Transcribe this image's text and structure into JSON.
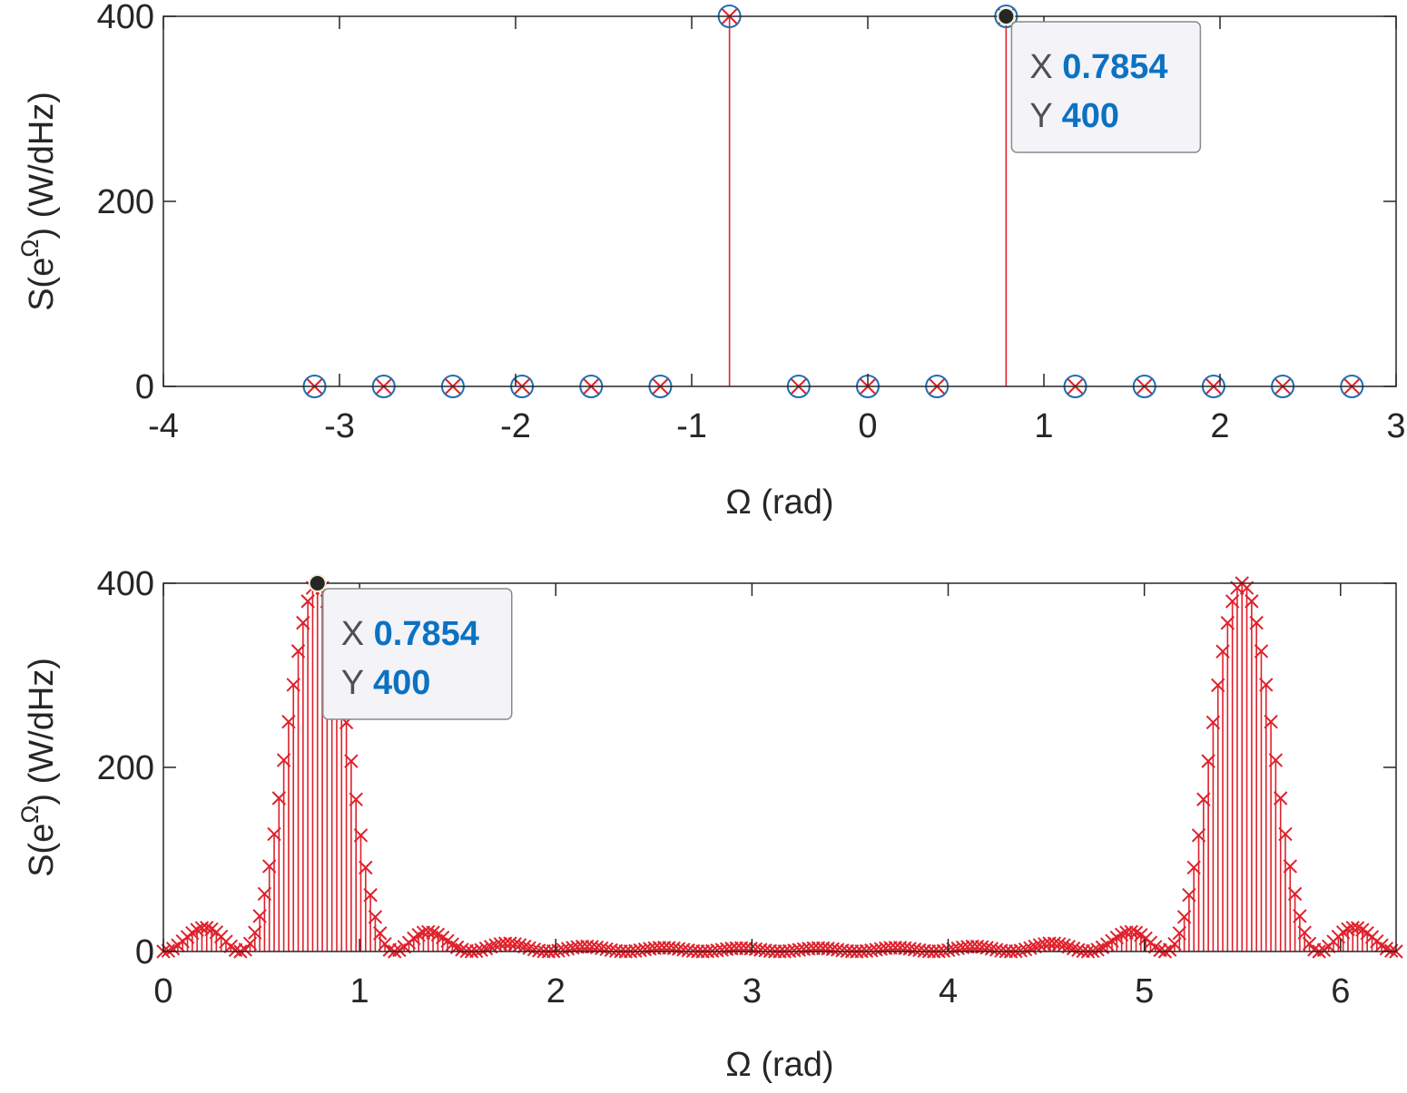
{
  "chart_data": [
    {
      "type": "stem",
      "xlabel": "Ω (rad)",
      "ylabel": "S(e^Ω)  (W/dHz)",
      "xlim": [
        -4,
        3
      ],
      "ylim": [
        0,
        400
      ],
      "xticks": [
        "-4",
        "-3",
        "-2",
        "-1",
        "0",
        "1",
        "2",
        "3"
      ],
      "yticks": [
        "0",
        "200",
        "400"
      ],
      "grid": false,
      "series": [
        {
          "marker": "x",
          "x": [
            -3.1416,
            -2.7489,
            -2.3562,
            -1.9635,
            -1.5708,
            -1.1781,
            -0.7854,
            -0.3927,
            0,
            0.3927,
            0.7854,
            1.1781,
            1.5708,
            1.9635,
            2.3562,
            2.7489
          ],
          "y": [
            0,
            0,
            0,
            0,
            0,
            0,
            400,
            0,
            0,
            0,
            400,
            0,
            0,
            0,
            0,
            0
          ]
        },
        {
          "marker": "o",
          "x": [
            -3.1416,
            -2.7489,
            -2.3562,
            -1.9635,
            -1.5708,
            -1.1781,
            -0.7854,
            -0.3927,
            0,
            0.3927,
            0.7854,
            1.1781,
            1.5708,
            1.9635,
            2.3562,
            2.7489
          ],
          "y": [
            0,
            0,
            0,
            0,
            0,
            0,
            400,
            0,
            0,
            0,
            400,
            0,
            0,
            0,
            0,
            0
          ]
        }
      ],
      "datatip": {
        "x": 0.7854,
        "y": 400,
        "x_key": "X",
        "x_text": "0.7854",
        "y_key": "Y",
        "y_text": "400"
      }
    },
    {
      "type": "stem",
      "xlabel": "Ω (rad)",
      "ylabel": "S(e^Ω)  (W/dHz)",
      "xlim": [
        0,
        6.2832
      ],
      "ylim": [
        0,
        400
      ],
      "xticks": [
        "0",
        "1",
        "2",
        "3",
        "4",
        "5",
        "6"
      ],
      "yticks": [
        "0",
        "200",
        "400"
      ],
      "grid": false,
      "series": [
        {
          "marker": "x",
          "x_range": [
            0,
            6.2832
          ],
          "n_points": 256,
          "y": "|Dirichlet|^2 spectrum with main lobes (peak 400) at 0.7854 and 5.4978, sidelobes approx. 28, 12, 8, 7, 6, 5"
        }
      ],
      "datatip": {
        "x": 0.7854,
        "y": 400,
        "x_key": "X",
        "x_text": "0.7854",
        "y_key": "Y",
        "y_text": "400"
      }
    }
  ]
}
